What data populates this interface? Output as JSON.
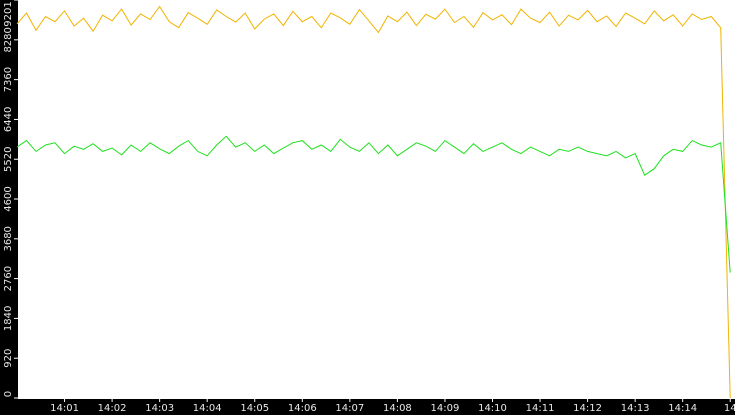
{
  "chart_data": {
    "type": "line",
    "x": [
      840.0,
      840.2,
      840.4,
      840.6,
      840.8,
      841.0,
      841.2,
      841.4,
      841.6,
      841.8,
      842.0,
      842.2,
      842.4,
      842.6,
      842.8,
      843.0,
      843.2,
      843.4,
      843.6,
      843.8,
      844.0,
      844.2,
      844.4,
      844.6,
      844.8,
      845.0,
      845.2,
      845.4,
      845.6,
      845.8,
      846.0,
      846.2,
      846.4,
      846.6,
      846.8,
      847.0,
      847.2,
      847.4,
      847.6,
      847.8,
      848.0,
      848.2,
      848.4,
      848.6,
      848.8,
      849.0,
      849.2,
      849.4,
      849.6,
      849.8,
      850.0,
      850.2,
      850.4,
      850.6,
      850.8,
      851.0,
      851.2,
      851.4,
      851.6,
      851.8,
      852.0,
      852.2,
      852.4,
      852.6,
      852.8,
      853.0,
      853.2,
      853.4,
      853.6,
      853.8,
      854.0,
      854.2,
      854.4,
      854.6,
      854.8,
      855.0
    ],
    "series": [
      {
        "color": "#f0b400",
        "values": [
          8650,
          8900,
          8500,
          8820,
          8700,
          8950,
          8600,
          8780,
          8480,
          8850,
          8720,
          8990,
          8620,
          8880,
          8750,
          9050,
          8700,
          8560,
          8910,
          8780,
          8640,
          8970,
          8820,
          8690,
          8900,
          8530,
          8760,
          8880,
          8610,
          8940,
          8700,
          8820,
          8560,
          8900,
          8790,
          8640,
          8980,
          8720,
          8450,
          8830,
          8700,
          8920,
          8610,
          8870,
          8760,
          8990,
          8680,
          8820,
          8570,
          8910,
          8740,
          8860,
          8630,
          8990,
          8780,
          8680,
          8920,
          8600,
          8850,
          8740,
          8960,
          8700,
          8830,
          8590,
          8900,
          8780,
          8650,
          8950,
          8720,
          8860,
          8600,
          8880,
          8750,
          8820,
          8560,
          0
        ]
      },
      {
        "color": "#1ee01e",
        "values": [
          5800,
          5950,
          5700,
          5850,
          5900,
          5650,
          5820,
          5750,
          5880,
          5700,
          5780,
          5620,
          5850,
          5700,
          5900,
          5760,
          5650,
          5820,
          5950,
          5700,
          5600,
          5850,
          6050,
          5800,
          5900,
          5700,
          5850,
          5650,
          5780,
          5900,
          5950,
          5750,
          5850,
          5700,
          5980,
          5800,
          5700,
          5900,
          5650,
          5850,
          5600,
          5750,
          5900,
          5820,
          5700,
          5950,
          5800,
          5650,
          5880,
          5700,
          5800,
          5900,
          5750,
          5650,
          5800,
          5700,
          5600,
          5750,
          5700,
          5800,
          5700,
          5650,
          5600,
          5700,
          5550,
          5650,
          5150,
          5300,
          5600,
          5750,
          5700,
          5950,
          5850,
          5800,
          5900,
          2900
        ]
      }
    ],
    "xlim": [
      840.0,
      855.1
    ],
    "xticks": [
      {
        "value": 841,
        "label": "14:01"
      },
      {
        "value": 842,
        "label": "14:02"
      },
      {
        "value": 843,
        "label": "14:03"
      },
      {
        "value": 844,
        "label": "14:04"
      },
      {
        "value": 845,
        "label": "14:05"
      },
      {
        "value": 846,
        "label": "14:06"
      },
      {
        "value": 847,
        "label": "14:07"
      },
      {
        "value": 848,
        "label": "14:08"
      },
      {
        "value": 849,
        "label": "14:09"
      },
      {
        "value": 850,
        "label": "14:10"
      },
      {
        "value": 851,
        "label": "14:11"
      },
      {
        "value": 852,
        "label": "14:12"
      },
      {
        "value": 853,
        "label": "14:13"
      },
      {
        "value": 854,
        "label": "14:14"
      },
      {
        "value": 855,
        "label": "14"
      }
    ],
    "ylim": [
      0,
      9201
    ],
    "yticks": [
      0,
      920,
      1840,
      2760,
      3680,
      4600,
      5520,
      6440,
      7360,
      8280,
      9201
    ]
  }
}
